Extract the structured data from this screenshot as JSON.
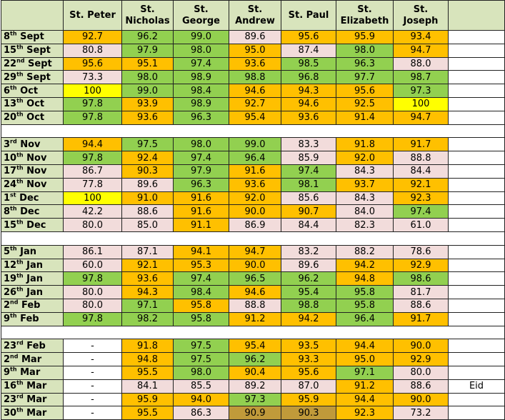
{
  "table": {
    "header": [
      {
        "lines": [
          "St. Peter"
        ]
      },
      {
        "lines": [
          "St.",
          "Nicholas"
        ]
      },
      {
        "lines": [
          "St.",
          "George"
        ]
      },
      {
        "lines": [
          "St.",
          "Andrew"
        ]
      },
      {
        "lines": [
          "St. Paul"
        ]
      },
      {
        "lines": [
          "St.",
          "Elizabeth"
        ]
      },
      {
        "lines": [
          "St.",
          "Joseph"
        ]
      }
    ],
    "sections": [
      {
        "rows": [
          {
            "date": {
              "day": "8",
              "suffix": "th",
              "month": "Sept"
            },
            "values": [
              "92.7",
              "96.2",
              "99.0",
              "89.6",
              "95.6",
              "95.9",
              "93.4"
            ],
            "fills": [
              "#ffc000",
              "#92d050",
              "#92d050",
              "#f2dcdb",
              "#ffc000",
              "#ffc000",
              "#ffc000"
            ]
          },
          {
            "date": {
              "day": "15",
              "suffix": "th",
              "month": "Sept"
            },
            "values": [
              "80.8",
              "97.9",
              "98.0",
              "95.0",
              "87.4",
              "98.0",
              "94.7"
            ],
            "fills": [
              "#f2dcdb",
              "#92d050",
              "#92d050",
              "#ffc000",
              "#f2dcdb",
              "#92d050",
              "#ffc000"
            ]
          },
          {
            "date": {
              "day": "22",
              "suffix": "nd",
              "month": "Sept"
            },
            "values": [
              "95.6",
              "95.1",
              "97.4",
              "93.6",
              "98.5",
              "96.3",
              "88.0"
            ],
            "fills": [
              "#ffc000",
              "#ffc000",
              "#92d050",
              "#ffc000",
              "#92d050",
              "#92d050",
              "#f2dcdb"
            ]
          },
          {
            "date": {
              "day": "29",
              "suffix": "th",
              "month": "Sept"
            },
            "values": [
              "73.3",
              "98.0",
              "98.9",
              "98.8",
              "96.8",
              "97.7",
              "98.7"
            ],
            "fills": [
              "#f2dcdb",
              "#92d050",
              "#92d050",
              "#92d050",
              "#92d050",
              "#92d050",
              "#92d050"
            ]
          },
          {
            "date": {
              "day": "6",
              "suffix": "th",
              "month": "Oct"
            },
            "values": [
              "100",
              "99.0",
              "98.4",
              "94.6",
              "94.3",
              "95.6",
              "97.3"
            ],
            "fills": [
              "#ffff00",
              "#92d050",
              "#92d050",
              "#ffc000",
              "#ffc000",
              "#ffc000",
              "#92d050"
            ]
          },
          {
            "date": {
              "day": "13",
              "suffix": "th",
              "month": "Oct"
            },
            "values": [
              "97.8",
              "93.9",
              "98.9",
              "92.7",
              "94.6",
              "92.5",
              "100"
            ],
            "fills": [
              "#92d050",
              "#ffc000",
              "#92d050",
              "#ffc000",
              "#ffc000",
              "#ffc000",
              "#ffff00"
            ]
          },
          {
            "date": {
              "day": "20",
              "suffix": "th",
              "month": "Oct"
            },
            "values": [
              "97.8",
              "93.6",
              "96.3",
              "95.4",
              "93.6",
              "91.4",
              "94.7"
            ],
            "fills": [
              "#92d050",
              "#ffc000",
              "#92d050",
              "#ffc000",
              "#ffc000",
              "#ffc000",
              "#ffc000"
            ]
          }
        ]
      },
      {
        "rows": [
          {
            "date": {
              "day": "3",
              "suffix": "rd",
              "month": "Nov"
            },
            "values": [
              "94.4",
              "97.5",
              "98.0",
              "99.0",
              "83.3",
              "91.8",
              "91.7"
            ],
            "fills": [
              "#ffc000",
              "#92d050",
              "#92d050",
              "#92d050",
              "#f2dcdb",
              "#ffc000",
              "#ffc000"
            ]
          },
          {
            "date": {
              "day": "10",
              "suffix": "th",
              "month": "Nov"
            },
            "values": [
              "97.8",
              "92.4",
              "97.4",
              "96.4",
              "85.9",
              "92.0",
              "88.8"
            ],
            "fills": [
              "#92d050",
              "#ffc000",
              "#92d050",
              "#92d050",
              "#f2dcdb",
              "#ffc000",
              "#f2dcdb"
            ]
          },
          {
            "date": {
              "day": "17",
              "suffix": "th",
              "month": "Nov"
            },
            "values": [
              "86.7",
              "90.3",
              "97.9",
              "91.6",
              "97.4",
              "84.3",
              "84.4"
            ],
            "fills": [
              "#f2dcdb",
              "#ffc000",
              "#92d050",
              "#ffc000",
              "#92d050",
              "#f2dcdb",
              "#f2dcdb"
            ]
          },
          {
            "date": {
              "day": "24",
              "suffix": "th",
              "month": "Nov"
            },
            "values": [
              "77.8",
              "89.6",
              "96.3",
              "93.6",
              "98.1",
              "93.7",
              "92.1"
            ],
            "fills": [
              "#f2dcdb",
              "#f2dcdb",
              "#92d050",
              "#ffc000",
              "#92d050",
              "#ffc000",
              "#ffc000"
            ]
          },
          {
            "date": {
              "day": "1",
              "suffix": "st",
              "month": "Dec"
            },
            "values": [
              "100",
              "91.0",
              "91.6",
              "92.0",
              "85.6",
              "84.3",
              "92.3"
            ],
            "fills": [
              "#ffff00",
              "#ffc000",
              "#ffc000",
              "#ffc000",
              "#f2dcdb",
              "#f2dcdb",
              "#ffc000"
            ]
          },
          {
            "date": {
              "day": "8",
              "suffix": "th",
              "month": "Dec"
            },
            "values": [
              "42.2",
              "88.6",
              "91.6",
              "90.0",
              "90.7",
              "84.0",
              "97.4"
            ],
            "fills": [
              "#f2dcdb",
              "#f2dcdb",
              "#ffc000",
              "#ffc000",
              "#ffc000",
              "#f2dcdb",
              "#92d050"
            ]
          },
          {
            "date": {
              "day": "15",
              "suffix": "th",
              "month": "Dec"
            },
            "values": [
              "80.0",
              "85.0",
              "91.1",
              "86.9",
              "84.4",
              "82.3",
              "61.0"
            ],
            "fills": [
              "#f2dcdb",
              "#f2dcdb",
              "#ffc000",
              "#f2dcdb",
              "#f2dcdb",
              "#f2dcdb",
              "#f2dcdb"
            ]
          }
        ]
      },
      {
        "rows": [
          {
            "date": {
              "day": "5",
              "suffix": "th",
              "month": "Jan"
            },
            "values": [
              "86.1",
              "87.1",
              "94.1",
              "94.7",
              "83.2",
              "88.2",
              "78.6"
            ],
            "fills": [
              "#f2dcdb",
              "#f2dcdb",
              "#ffc000",
              "#ffc000",
              "#f2dcdb",
              "#f2dcdb",
              "#f2dcdb"
            ]
          },
          {
            "date": {
              "day": "12",
              "suffix": "th",
              "month": "Jan"
            },
            "values": [
              "60.0",
              "92.1",
              "95.3",
              "90.0",
              "89.6",
              "94.2",
              "92.9"
            ],
            "fills": [
              "#f2dcdb",
              "#ffc000",
              "#ffc000",
              "#ffc000",
              "#f2dcdb",
              "#ffc000",
              "#ffc000"
            ]
          },
          {
            "date": {
              "day": "19",
              "suffix": "th",
              "month": "Jan"
            },
            "values": [
              "97.8",
              "93.6",
              "97.4",
              "96.5",
              "96.2",
              "94.8",
              "98.6"
            ],
            "fills": [
              "#92d050",
              "#ffc000",
              "#92d050",
              "#92d050",
              "#92d050",
              "#ffc000",
              "#92d050"
            ]
          },
          {
            "date": {
              "day": "26",
              "suffix": "th",
              "month": "Jan"
            },
            "values": [
              "80.0",
              "94.3",
              "98.4",
              "94.6",
              "95.4",
              "95.8",
              "81.7"
            ],
            "fills": [
              "#f2dcdb",
              "#ffc000",
              "#92d050",
              "#ffc000",
              "#92d050",
              "#92d050",
              "#f2dcdb"
            ]
          },
          {
            "date": {
              "day": "2",
              "suffix": "nd",
              "month": "Feb"
            },
            "values": [
              "80.0",
              "97.1",
              "95.8",
              "88.8",
              "98.8",
              "95.8",
              "88.6"
            ],
            "fills": [
              "#f2dcdb",
              "#92d050",
              "#ffc000",
              "#f2dcdb",
              "#92d050",
              "#92d050",
              "#f2dcdb"
            ]
          },
          {
            "date": {
              "day": "9",
              "suffix": "th",
              "month": "Feb"
            },
            "values": [
              "97.8",
              "98.2",
              "95.8",
              "91.2",
              "94.2",
              "96.4",
              "91.7"
            ],
            "fills": [
              "#92d050",
              "#92d050",
              "#92d050",
              "#ffc000",
              "#ffc000",
              "#92d050",
              "#ffc000"
            ]
          }
        ]
      },
      {
        "rows": [
          {
            "date": {
              "day": "23",
              "suffix": "rd",
              "month": "Feb"
            },
            "values": [
              "-",
              "91.8",
              "97.5",
              "95.4",
              "93.5",
              "94.4",
              "90.0"
            ],
            "fills": [
              "#ffffff",
              "#ffc000",
              "#92d050",
              "#ffc000",
              "#ffc000",
              "#ffc000",
              "#ffc000"
            ]
          },
          {
            "date": {
              "day": "2",
              "suffix": "nd",
              "month": "Mar"
            },
            "values": [
              "-",
              "94.8",
              "97.5",
              "96.2",
              "93.3",
              "95.0",
              "92.9"
            ],
            "fills": [
              "#ffffff",
              "#ffc000",
              "#92d050",
              "#92d050",
              "#ffc000",
              "#ffc000",
              "#ffc000"
            ]
          },
          {
            "date": {
              "day": "9",
              "suffix": "th",
              "month": "Mar"
            },
            "values": [
              "-",
              "95.5",
              "98.0",
              "90.4",
              "95.6",
              "97.1",
              "80.0"
            ],
            "fills": [
              "#ffffff",
              "#ffc000",
              "#92d050",
              "#ffc000",
              "#ffc000",
              "#92d050",
              "#f2dcdb"
            ]
          },
          {
            "date": {
              "day": "16",
              "suffix": "th",
              "month": "Mar"
            },
            "values": [
              "-",
              "84.1",
              "85.5",
              "89.2",
              "87.0",
              "91.2",
              "88.6"
            ],
            "fills": [
              "#ffffff",
              "#f2dcdb",
              "#f2dcdb",
              "#f2dcdb",
              "#f2dcdb",
              "#ffc000",
              "#f2dcdb"
            ],
            "note": "Eid"
          },
          {
            "date": {
              "day": "23",
              "suffix": "rd",
              "month": "Mar"
            },
            "values": [
              "-",
              "95.9",
              "94.0",
              "97.3",
              "95.9",
              "94.4",
              "90.0"
            ],
            "fills": [
              "#ffffff",
              "#ffc000",
              "#ffc000",
              "#92d050",
              "#ffc000",
              "#ffc000",
              "#ffc000"
            ]
          },
          {
            "date": {
              "day": "30",
              "suffix": "th",
              "month": "Mar"
            },
            "values": [
              "-",
              "95.5",
              "86.3",
              "90.9",
              "90.3",
              "92.3",
              "73.2"
            ],
            "fills": [
              "#ffffff",
              "#ffc000",
              "#f2dcdb",
              "#c09a3a",
              "#c09a3a",
              "#ffc000",
              "#f2dcdb"
            ]
          }
        ]
      }
    ]
  }
}
